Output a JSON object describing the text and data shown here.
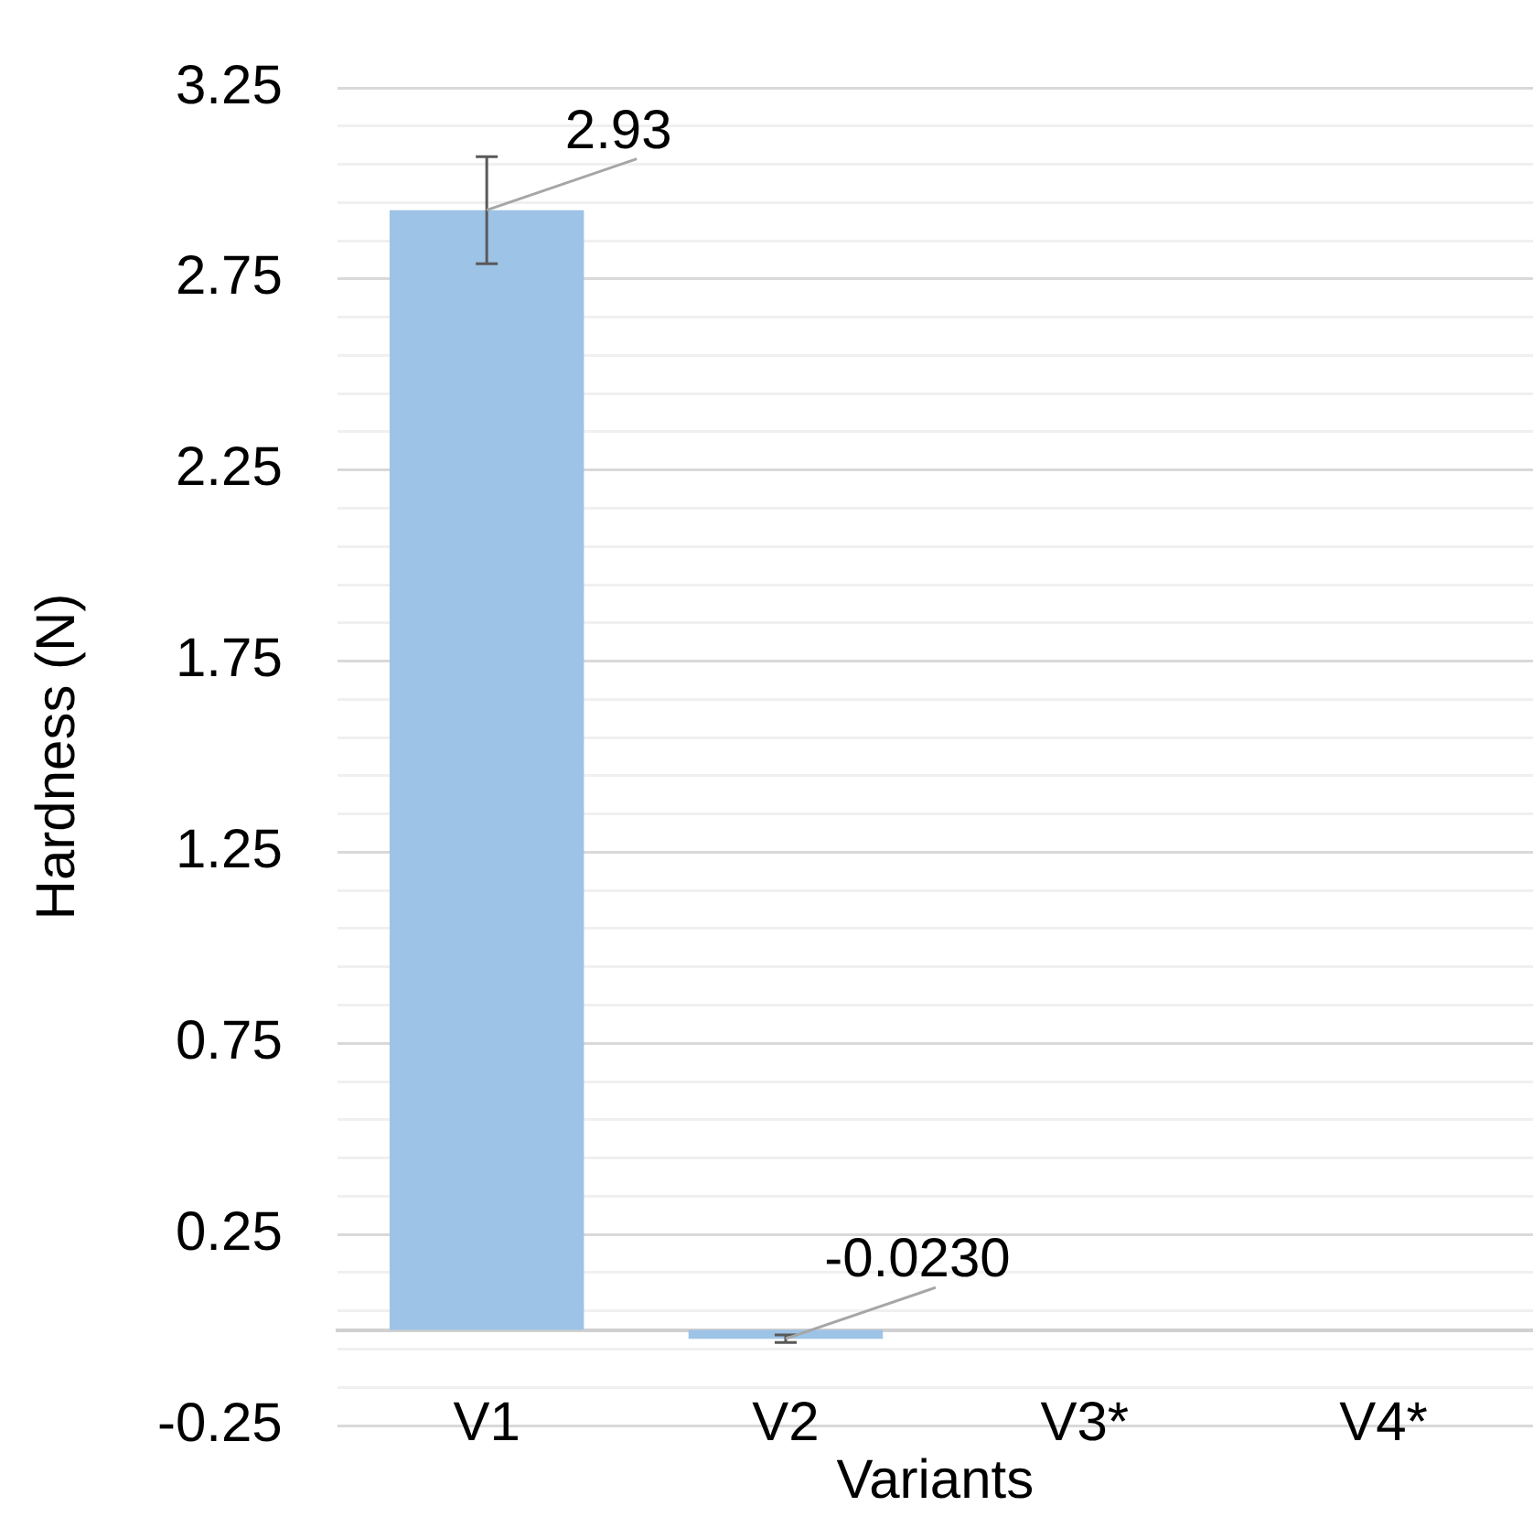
{
  "chart_data": {
    "type": "bar",
    "xlabel": "Variants",
    "ylabel": "Hardness (N)",
    "categories": [
      "V1",
      "V2",
      "V3*",
      "V4*"
    ],
    "values": [
      2.93,
      -0.023,
      null,
      null
    ],
    "errors": [
      0.14,
      0.01,
      null,
      null
    ],
    "value_labels": [
      "2.93",
      "-0.0230",
      null,
      null
    ],
    "color": "#9dc3e6",
    "ylim": [
      -0.25,
      3.25
    ],
    "yticks": [
      -0.25,
      {
        "value": -0.15,
        "label": null
      },
      {
        "value": -0.05,
        "label": null
      },
      {
        "value": 0.05,
        "label": null
      },
      {
        "value": 0.15,
        "label": null
      },
      0.25,
      {
        "value": 0.35,
        "label": null
      },
      {
        "value": 0.45,
        "label": null
      },
      {
        "value": 0.55,
        "label": null
      },
      {
        "value": 0.65,
        "label": null
      },
      0.75,
      {
        "value": 0.85,
        "label": null
      },
      {
        "value": 0.95,
        "label": null
      },
      {
        "value": 1.05,
        "label": null
      },
      {
        "value": 1.15,
        "label": null
      },
      1.25,
      {
        "value": 1.35,
        "label": null
      },
      {
        "value": 1.45,
        "label": null
      },
      {
        "value": 1.55,
        "label": null
      },
      {
        "value": 1.65,
        "label": null
      },
      1.75,
      {
        "value": 1.85,
        "label": null
      },
      {
        "value": 1.95,
        "label": null
      },
      {
        "value": 2.05,
        "label": null
      },
      {
        "value": 2.15,
        "label": null
      },
      2.25,
      {
        "value": 2.35,
        "label": null
      },
      {
        "value": 2.45,
        "label": null
      },
      {
        "value": 2.55,
        "label": null
      },
      {
        "value": 2.65,
        "label": null
      },
      2.75,
      {
        "value": 2.85,
        "label": null
      },
      {
        "value": 2.95,
        "label": null
      },
      {
        "value": 3.05,
        "label": null
      },
      {
        "value": 3.15,
        "label": null
      },
      3.25
    ],
    "grid": "y",
    "legend": false
  }
}
